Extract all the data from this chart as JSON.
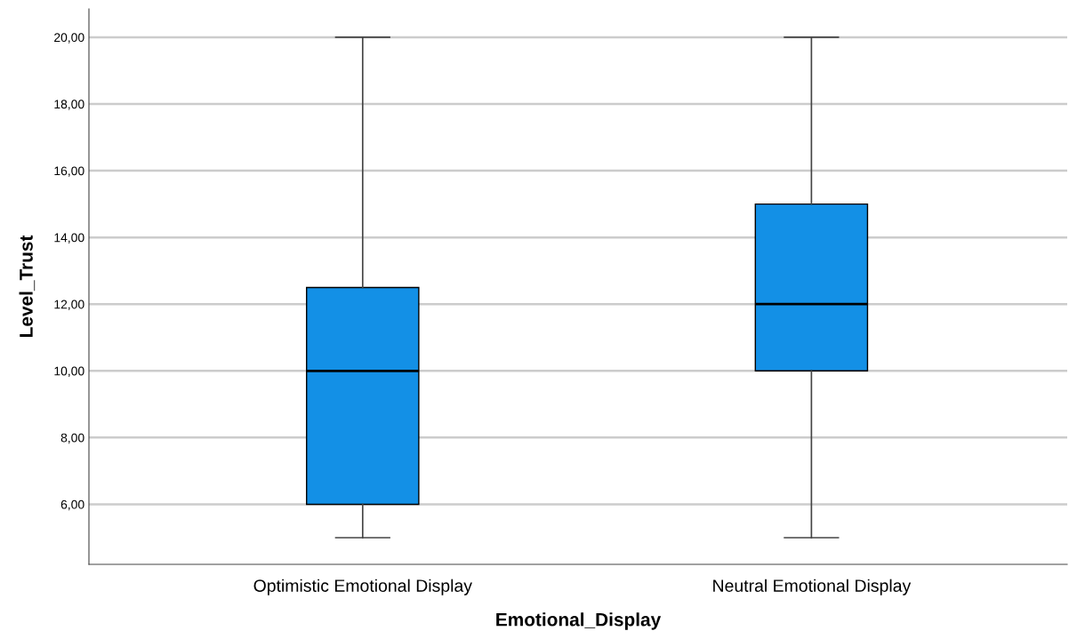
{
  "chart_data": {
    "type": "box",
    "xlabel": "Emotional_Display",
    "ylabel": "Level_Trust",
    "categories": [
      "Optimistic Emotional Display",
      "Neutral Emotional Display"
    ],
    "boxes": [
      {
        "low": 5,
        "q1": 6,
        "median": 10,
        "q3": 12.5,
        "high": 20
      },
      {
        "low": 5,
        "q1": 10,
        "median": 12,
        "q3": 15,
        "high": 20
      }
    ],
    "color": "#1390e6",
    "ylim": [
      4.2,
      20.85
    ],
    "yticks": [
      {
        "value": 6,
        "label": "6,00"
      },
      {
        "value": 8,
        "label": "8,00"
      },
      {
        "value": 10,
        "label": "10,00"
      },
      {
        "value": 12,
        "label": "12,00"
      },
      {
        "value": 14,
        "label": "14,00"
      },
      {
        "value": 16,
        "label": "16,00"
      },
      {
        "value": 18,
        "label": "18,00"
      },
      {
        "value": 20,
        "label": "20,00"
      }
    ],
    "grid": "y",
    "legend": false
  }
}
